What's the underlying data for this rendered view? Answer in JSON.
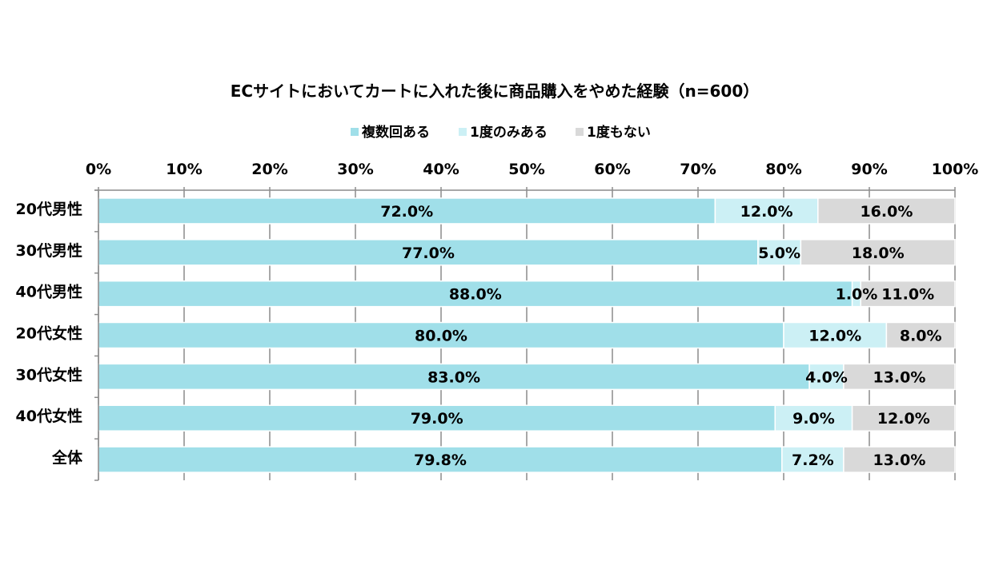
{
  "chart_data": {
    "type": "bar",
    "orientation": "horizontal",
    "stacked": "percent",
    "title": "ECサイトにおいてカートに入れた後に商品購入をやめた経験（n=600）",
    "categories": [
      "20代男性",
      "30代男性",
      "40代男性",
      "20代女性",
      "30代女性",
      "40代女性",
      "全体"
    ],
    "series": [
      {
        "name": "複数回ある",
        "color": "#a0dfe9",
        "values": [
          72.0,
          77.0,
          88.0,
          80.0,
          83.0,
          79.0,
          79.8
        ],
        "labels": [
          "72.0%",
          "77.0%",
          "88.0%",
          "80.0%",
          "83.0%",
          "79.0%",
          "79.8%"
        ]
      },
      {
        "name": "1度のみある",
        "color": "#ccf0f5",
        "values": [
          12.0,
          5.0,
          1.0,
          12.0,
          4.0,
          9.0,
          7.2
        ],
        "labels": [
          "12.0%",
          "5.0%",
          "1.0%",
          "12.0%",
          "4.0%",
          "9.0%",
          "7.2%"
        ]
      },
      {
        "name": "1度もない",
        "color": "#d9d9d9",
        "values": [
          16.0,
          18.0,
          11.0,
          8.0,
          13.0,
          12.0,
          13.0
        ],
        "labels": [
          "16.0%",
          "18.0%",
          "11.0%",
          "8.0%",
          "13.0%",
          "12.0%",
          "13.0%"
        ]
      }
    ],
    "xlim": [
      0,
      100
    ],
    "xticks": [
      "0%",
      "10%",
      "20%",
      "30%",
      "40%",
      "50%",
      "60%",
      "70%",
      "80%",
      "90%",
      "100%"
    ],
    "grid": true,
    "legend": "top"
  }
}
